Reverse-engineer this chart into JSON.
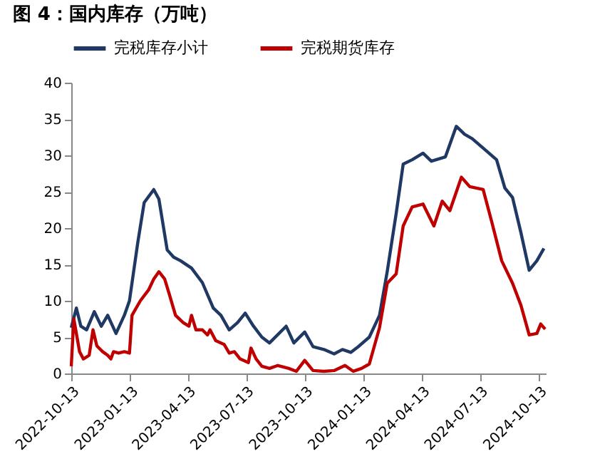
{
  "chart_data": {
    "type": "line",
    "title": "图 4：国内库存（万吨）",
    "legend": "top",
    "ylim": [
      0,
      40
    ],
    "yticks": [
      0,
      5,
      10,
      15,
      20,
      25,
      30,
      35,
      40
    ],
    "xlim": [
      "2022-10-13",
      "2024-10-24"
    ],
    "xticks": [
      "2022-10-13",
      "2023-01-13",
      "2023-04-13",
      "2023-07-13",
      "2023-10-13",
      "2024-01-13",
      "2024-04-13",
      "2024-07-13",
      "2024-10-13"
    ],
    "grid": false,
    "series": [
      {
        "name": "完税库存小计",
        "color": "#1f3864",
        "x": [
          "2022-10-13",
          "2022-10-21",
          "2022-10-28",
          "2022-11-06",
          "2022-11-18",
          "2022-11-29",
          "2022-12-09",
          "2022-12-22",
          "2023-01-04",
          "2023-01-12",
          "2023-01-25",
          "2023-02-04",
          "2023-02-19",
          "2023-02-27",
          "2023-03-12",
          "2023-03-22",
          "2023-04-02",
          "2023-04-19",
          "2023-05-06",
          "2023-05-23",
          "2023-06-04",
          "2023-06-17",
          "2023-06-30",
          "2023-07-12",
          "2023-07-25",
          "2023-08-07",
          "2023-08-19",
          "2023-09-14",
          "2023-09-26",
          "2023-10-13",
          "2023-10-26",
          "2023-11-12",
          "2023-11-28",
          "2023-12-11",
          "2023-12-24",
          "2024-01-05",
          "2024-01-22",
          "2024-02-07",
          "2024-02-19",
          "2024-03-04",
          "2024-03-15",
          "2024-03-29",
          "2024-04-15",
          "2024-04-28",
          "2024-05-20",
          "2024-06-06",
          "2024-06-19",
          "2024-07-01",
          "2024-07-22",
          "2024-08-08",
          "2024-08-21",
          "2024-09-02",
          "2024-09-15",
          "2024-09-28",
          "2024-10-10",
          "2024-10-21"
        ],
        "values": [
          6.3,
          9,
          6.5,
          6,
          8.5,
          6.5,
          8,
          5.5,
          8,
          10,
          18,
          23.5,
          25.3,
          24,
          17,
          16,
          15.5,
          14.5,
          12.5,
          9,
          8,
          6,
          7,
          8.3,
          6.5,
          5,
          4.2,
          6.5,
          4.2,
          5.7,
          3.7,
          3.3,
          2.7,
          3.3,
          2.9,
          3.7,
          5,
          8,
          14,
          22,
          28.8,
          29.4,
          30.3,
          29.2,
          29.8,
          34,
          32.9,
          32.3,
          30.7,
          29.4,
          25.5,
          24.2,
          19.4,
          14.2,
          15.5,
          17.2
        ]
      },
      {
        "name": "完税期货库存",
        "color": "#c00000",
        "x": [
          "2022-10-13",
          "2022-10-17",
          "2022-10-22",
          "2022-10-26",
          "2022-11-01",
          "2022-11-10",
          "2022-11-16",
          "2022-11-22",
          "2022-12-01",
          "2022-12-09",
          "2022-12-14",
          "2022-12-18",
          "2022-12-26",
          "2023-01-04",
          "2023-01-12",
          "2023-01-16",
          "2023-01-29",
          "2023-02-11",
          "2023-02-19",
          "2023-02-27",
          "2023-03-08",
          "2023-03-15",
          "2023-03-25",
          "2023-04-06",
          "2023-04-15",
          "2023-04-19",
          "2023-04-26",
          "2023-05-06",
          "2023-05-14",
          "2023-05-18",
          "2023-05-27",
          "2023-06-09",
          "2023-06-17",
          "2023-06-25",
          "2023-07-04",
          "2023-07-17",
          "2023-07-21",
          "2023-07-29",
          "2023-08-07",
          "2023-08-19",
          "2023-09-01",
          "2023-09-18",
          "2023-09-30",
          "2023-10-13",
          "2023-10-26",
          "2023-11-12",
          "2023-11-28",
          "2023-12-15",
          "2023-12-28",
          "2024-01-10",
          "2024-01-22",
          "2024-02-07",
          "2024-02-19",
          "2024-03-04",
          "2024-03-15",
          "2024-03-29",
          "2024-04-15",
          "2024-05-02",
          "2024-05-15",
          "2024-05-27",
          "2024-06-14",
          "2024-06-27",
          "2024-07-18",
          "2024-07-31",
          "2024-08-16",
          "2024-09-02",
          "2024-09-15",
          "2024-09-28",
          "2024-10-10",
          "2024-10-16",
          "2024-10-23"
        ],
        "values": [
          1,
          7.5,
          5,
          3,
          2,
          2.5,
          6,
          3.8,
          3,
          2.5,
          2,
          3,
          2.8,
          3,
          2.8,
          8,
          10,
          11.5,
          13,
          14,
          13,
          11,
          8,
          7,
          6.5,
          8,
          6,
          6,
          5.3,
          6,
          4.5,
          4,
          2.8,
          3,
          2,
          1.5,
          3.5,
          2,
          1,
          0.7,
          1.1,
          0.7,
          0.3,
          1.8,
          0.4,
          0.3,
          0.4,
          1.1,
          0.3,
          0.7,
          1.3,
          6.3,
          12.4,
          13.7,
          20.3,
          22.9,
          23.3,
          20.3,
          23.7,
          22.4,
          27,
          25.7,
          25.3,
          21,
          15.5,
          12.4,
          9.4,
          5.3,
          5.5,
          6.8,
          6.1
        ]
      }
    ]
  }
}
